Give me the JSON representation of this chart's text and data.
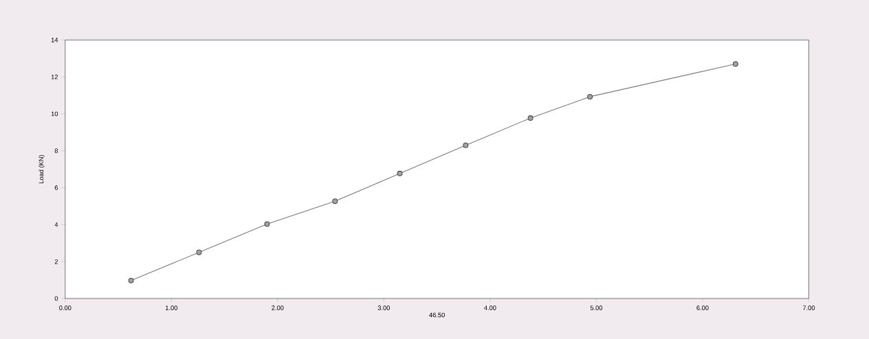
{
  "chart_data": {
    "type": "line",
    "xlabel": "46.50",
    "ylabel": "Load (KN)",
    "x": [
      0.62,
      1.26,
      1.9,
      2.54,
      3.15,
      3.77,
      4.38,
      4.94,
      6.31
    ],
    "series": [
      {
        "color": "#7a7a7a",
        "values": [
          0.97,
          2.5,
          4.03,
          5.27,
          6.77,
          8.3,
          9.77,
          10.93,
          12.7
        ]
      }
    ],
    "marker": "circle",
    "xlim": [
      0,
      7
    ],
    "xticks": [
      {
        "value": 0,
        "label": "0.00"
      },
      {
        "value": 1,
        "label": "1.00"
      },
      {
        "value": 2,
        "label": "2.00"
      },
      {
        "value": 3,
        "label": "3.00"
      },
      {
        "value": 4,
        "label": "4.00"
      },
      {
        "value": 5,
        "label": "5.00"
      },
      {
        "value": 6,
        "label": "6.00"
      },
      {
        "value": 7,
        "label": "7.00"
      }
    ],
    "ylim": [
      0,
      14
    ],
    "yticks": [
      0,
      2,
      4,
      6,
      8,
      10,
      12,
      14
    ]
  }
}
